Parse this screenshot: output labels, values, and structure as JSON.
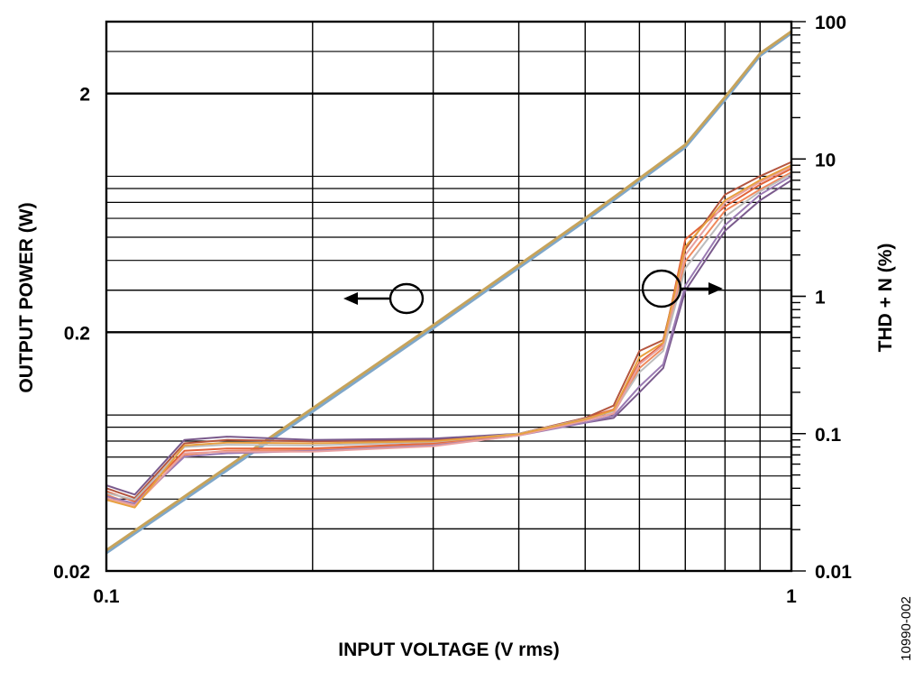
{
  "figure_id": "10990-002",
  "chart_data": {
    "type": "line",
    "xlabel": "INPUT VOLTAGE (V rms)",
    "ylabel_left": "OUTPUT POWER (W)",
    "ylabel_right": "THD + N (%)",
    "x_scale": "log",
    "y_left_scale": "log",
    "y_right_scale": "log",
    "xlim": [
      0.1,
      1
    ],
    "ylim_left": [
      0.02,
      4
    ],
    "ylim_right": [
      0.01,
      100
    ],
    "x_ticks": [
      {
        "value": 0.1,
        "label": "0.1"
      },
      {
        "value": 1,
        "label": "1"
      }
    ],
    "y_left_ticks": [
      {
        "value": 0.02,
        "label": "0.02"
      },
      {
        "value": 0.2,
        "label": "0.2"
      },
      {
        "value": 2,
        "label": "2"
      }
    ],
    "y_right_ticks": [
      {
        "value": 0.01,
        "label": "0.01"
      },
      {
        "value": 0.1,
        "label": "0.1"
      },
      {
        "value": 1,
        "label": "1"
      },
      {
        "value": 10,
        "label": "10"
      },
      {
        "value": 100,
        "label": "100"
      }
    ],
    "grid": true,
    "annotations": [
      {
        "label": "circle-arrow-left",
        "points_to": "left axis (output power curves)"
      },
      {
        "label": "circle-arrow-right",
        "points_to": "right axis (THD + N curves)"
      }
    ],
    "series": [
      {
        "axis": "left",
        "color": "#2a9d9a",
        "x": [
          0.1,
          0.2,
          0.3,
          0.5,
          0.7,
          0.8,
          0.9,
          1.0
        ],
        "y": [
          0.024,
          0.094,
          0.21,
          0.59,
          1.2,
          1.9,
          2.9,
          3.6
        ]
      },
      {
        "axis": "left",
        "color": "#8fbf6a",
        "x": [
          0.1,
          0.2,
          0.3,
          0.5,
          0.7,
          0.8,
          0.9,
          1.0
        ],
        "y": [
          0.0242,
          0.095,
          0.212,
          0.595,
          1.21,
          1.92,
          2.92,
          3.62
        ]
      },
      {
        "axis": "left",
        "color": "#7fa7c9",
        "x": [
          0.1,
          0.2,
          0.3,
          0.5,
          0.7,
          0.8,
          0.9,
          1.0
        ],
        "y": [
          0.0238,
          0.093,
          0.208,
          0.585,
          1.19,
          1.88,
          2.88,
          3.58
        ]
      },
      {
        "axis": "left",
        "color": "#c7a35a",
        "x": [
          0.1,
          0.2,
          0.3,
          0.5,
          0.7,
          0.8,
          0.9,
          1.0
        ],
        "y": [
          0.0244,
          0.096,
          0.214,
          0.6,
          1.22,
          1.93,
          2.94,
          3.64
        ]
      },
      {
        "axis": "right",
        "color": "#e2633a",
        "x": [
          0.1,
          0.11,
          0.13,
          0.15,
          0.2,
          0.3,
          0.4,
          0.5,
          0.55,
          0.6,
          0.65,
          0.7,
          0.8,
          0.9,
          1.0
        ],
        "y": [
          0.038,
          0.032,
          0.075,
          0.078,
          0.078,
          0.085,
          0.1,
          0.13,
          0.15,
          0.33,
          0.45,
          2.6,
          4.5,
          6.5,
          8.5
        ]
      },
      {
        "axis": "right",
        "color": "#b5563f",
        "x": [
          0.1,
          0.11,
          0.13,
          0.15,
          0.2,
          0.3,
          0.4,
          0.5,
          0.55,
          0.6,
          0.65,
          0.7,
          0.8,
          0.9,
          1.0
        ],
        "y": [
          0.04,
          0.034,
          0.085,
          0.09,
          0.088,
          0.09,
          0.1,
          0.13,
          0.16,
          0.4,
          0.48,
          2.2,
          5.5,
          7.5,
          9.5
        ]
      },
      {
        "axis": "right",
        "color": "#f08a5d",
        "x": [
          0.1,
          0.11,
          0.13,
          0.15,
          0.2,
          0.3,
          0.4,
          0.5,
          0.55,
          0.6,
          0.65,
          0.7,
          0.8,
          0.9,
          1.0
        ],
        "y": [
          0.036,
          0.03,
          0.07,
          0.075,
          0.076,
          0.083,
          0.098,
          0.125,
          0.14,
          0.3,
          0.42,
          1.8,
          4.2,
          6.0,
          8.0
        ]
      },
      {
        "axis": "right",
        "color": "#7a5a8c",
        "x": [
          0.1,
          0.11,
          0.13,
          0.15,
          0.2,
          0.3,
          0.4,
          0.5,
          0.55,
          0.6,
          0.65,
          0.7,
          0.8,
          0.9,
          1.0
        ],
        "y": [
          0.042,
          0.036,
          0.09,
          0.095,
          0.09,
          0.092,
          0.1,
          0.12,
          0.13,
          0.2,
          0.3,
          1.1,
          3.0,
          5.0,
          7.0
        ]
      },
      {
        "axis": "right",
        "color": "#9b7bb3",
        "x": [
          0.1,
          0.11,
          0.13,
          0.15,
          0.2,
          0.3,
          0.4,
          0.5,
          0.55,
          0.6,
          0.65,
          0.7,
          0.8,
          0.9,
          1.0
        ],
        "y": [
          0.035,
          0.031,
          0.068,
          0.072,
          0.075,
          0.082,
          0.097,
          0.12,
          0.135,
          0.22,
          0.32,
          1.2,
          3.3,
          5.5,
          7.5
        ]
      },
      {
        "axis": "right",
        "color": "#bdbdbd",
        "x": [
          0.1,
          0.11,
          0.13,
          0.15,
          0.2,
          0.3,
          0.4,
          0.5,
          0.55,
          0.6,
          0.65,
          0.7,
          0.8,
          0.9,
          1.0
        ],
        "y": [
          0.037,
          0.033,
          0.08,
          0.083,
          0.082,
          0.087,
          0.1,
          0.128,
          0.145,
          0.28,
          0.4,
          1.6,
          3.8,
          5.8,
          7.8
        ]
      },
      {
        "axis": "right",
        "color": "#e8a0a0",
        "x": [
          0.1,
          0.11,
          0.13,
          0.15,
          0.2,
          0.3,
          0.4,
          0.5,
          0.55,
          0.6,
          0.65,
          0.7,
          0.8,
          0.9,
          1.0
        ],
        "y": [
          0.034,
          0.03,
          0.072,
          0.074,
          0.074,
          0.081,
          0.097,
          0.124,
          0.14,
          0.32,
          0.44,
          2.0,
          4.8,
          6.8,
          8.8
        ]
      },
      {
        "axis": "right",
        "color": "#e8a040",
        "x": [
          0.1,
          0.11,
          0.13,
          0.15,
          0.2,
          0.3,
          0.4,
          0.5,
          0.55,
          0.6,
          0.65,
          0.7,
          0.8,
          0.9,
          1.0
        ],
        "y": [
          0.033,
          0.029,
          0.082,
          0.086,
          0.085,
          0.088,
          0.099,
          0.127,
          0.148,
          0.36,
          0.46,
          2.3,
          5.0,
          7.0,
          9.0
        ]
      }
    ]
  }
}
